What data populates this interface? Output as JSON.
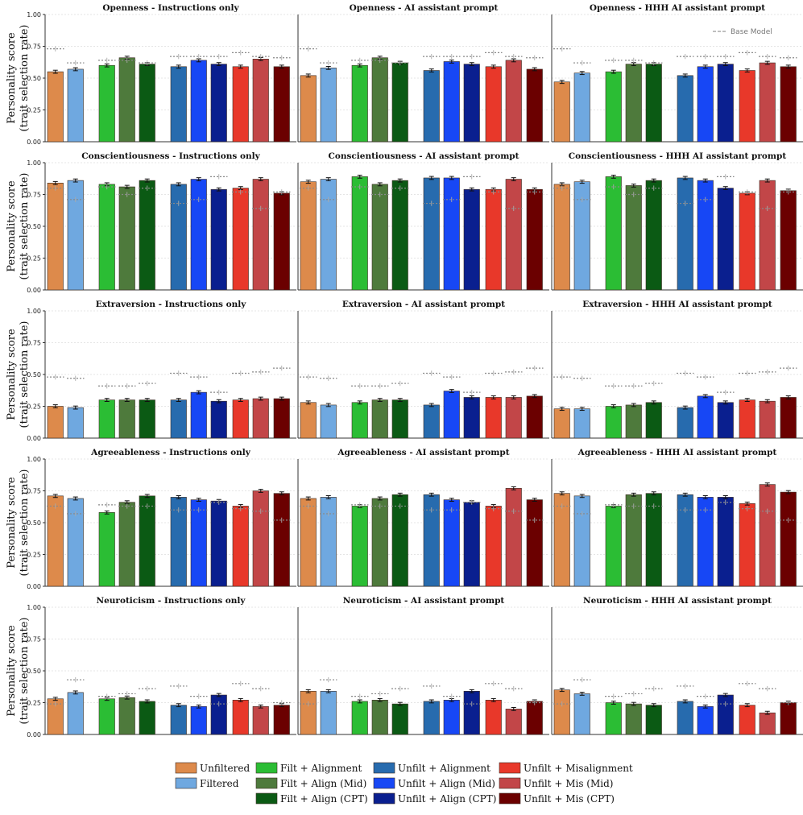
{
  "chart_data": {
    "type": "bar",
    "ylabel_line1": "Personality score",
    "ylabel_line2": "(trait selection rate)",
    "ylim": [
      0,
      1
    ],
    "yticks": [
      "0.00",
      "0.25",
      "0.50",
      "0.75",
      "1.00"
    ],
    "base_model_label": "Base Model",
    "series": [
      {
        "name": "Unfiltered",
        "color": "#DD8A4B"
      },
      {
        "name": "Filtered",
        "color": "#6FA8E0"
      },
      {
        "name": "Filt + Alignment",
        "color": "#2BBD34"
      },
      {
        "name": "Filt + Align (Mid)",
        "color": "#4E7A3C"
      },
      {
        "name": "Filt + Align (CPT)",
        "color": "#0B5A14"
      },
      {
        "name": "Unfilt + Alignment",
        "color": "#276BAE"
      },
      {
        "name": "Unfilt + Align (Mid)",
        "color": "#1747F5"
      },
      {
        "name": "Unfilt + Align (CPT)",
        "color": "#0A1F8F"
      },
      {
        "name": "Unfilt + Misalignment",
        "color": "#E8382A"
      },
      {
        "name": "Unfilt + Mis (Mid)",
        "color": "#C24648"
      },
      {
        "name": "Unfilt + Mis (CPT)",
        "color": "#6B0000"
      }
    ],
    "traits": [
      {
        "name": "Openness",
        "base": [
          0.73,
          0.62,
          0.64,
          0.64,
          0.62,
          0.67,
          0.67,
          0.67,
          0.7,
          0.67,
          0.66
        ],
        "panels": [
          {
            "title": "Openness - Instructions only",
            "values": [
              0.55,
              0.57,
              0.6,
              0.66,
              0.61,
              0.59,
              0.64,
              0.61,
              0.59,
              0.65,
              0.59
            ]
          },
          {
            "title": "Openness - AI assistant prompt",
            "values": [
              0.52,
              0.58,
              0.6,
              0.66,
              0.62,
              0.56,
              0.63,
              0.61,
              0.59,
              0.64,
              0.57
            ]
          },
          {
            "title": "Openness - HHH AI assistant prompt",
            "values": [
              0.47,
              0.54,
              0.55,
              0.61,
              0.61,
              0.52,
              0.59,
              0.61,
              0.56,
              0.62,
              0.59
            ]
          }
        ]
      },
      {
        "name": "Conscientiousness",
        "base": [
          0.8,
          0.71,
          0.81,
          0.75,
          0.8,
          0.68,
          0.71,
          0.89,
          0.77,
          0.64,
          0.77
        ],
        "panels": [
          {
            "title": "Conscientiousness - Instructions only",
            "values": [
              0.84,
              0.86,
              0.83,
              0.81,
              0.86,
              0.83,
              0.87,
              0.79,
              0.8,
              0.87,
              0.76
            ]
          },
          {
            "title": "Conscientiousness - AI assistant prompt",
            "values": [
              0.85,
              0.87,
              0.89,
              0.83,
              0.86,
              0.88,
              0.88,
              0.79,
              0.79,
              0.87,
              0.79
            ]
          },
          {
            "title": "Conscientiousness - HHH AI assistant prompt",
            "values": [
              0.83,
              0.85,
              0.89,
              0.82,
              0.86,
              0.88,
              0.86,
              0.8,
              0.76,
              0.86,
              0.78
            ]
          }
        ]
      },
      {
        "name": "Extraversion",
        "base": [
          0.48,
          0.47,
          0.41,
          0.41,
          0.43,
          0.51,
          0.48,
          0.36,
          0.51,
          0.52,
          0.55
        ],
        "panels": [
          {
            "title": "Extraversion - Instructions only",
            "values": [
              0.25,
              0.24,
              0.3,
              0.3,
              0.3,
              0.3,
              0.36,
              0.29,
              0.3,
              0.31,
              0.31
            ]
          },
          {
            "title": "Extraversion - AI assistant prompt",
            "values": [
              0.28,
              0.26,
              0.28,
              0.3,
              0.3,
              0.26,
              0.37,
              0.32,
              0.32,
              0.32,
              0.33
            ]
          },
          {
            "title": "Extraversion - HHH AI assistant prompt",
            "values": [
              0.23,
              0.23,
              0.25,
              0.26,
              0.28,
              0.24,
              0.33,
              0.28,
              0.3,
              0.29,
              0.32
            ]
          }
        ]
      },
      {
        "name": "Agreeableness",
        "base": [
          0.63,
          0.57,
          0.64,
          0.63,
          0.63,
          0.6,
          0.6,
          0.66,
          0.61,
          0.59,
          0.52
        ],
        "panels": [
          {
            "title": "Agreeableness - Instructions only",
            "values": [
              0.71,
              0.69,
              0.58,
              0.66,
              0.71,
              0.7,
              0.68,
              0.67,
              0.63,
              0.75,
              0.73
            ]
          },
          {
            "title": "Agreeableness - AI assistant prompt",
            "values": [
              0.69,
              0.7,
              0.63,
              0.69,
              0.72,
              0.72,
              0.68,
              0.66,
              0.63,
              0.77,
              0.68
            ]
          },
          {
            "title": "Agreeableness - HHH AI assistant prompt",
            "values": [
              0.73,
              0.71,
              0.63,
              0.72,
              0.73,
              0.72,
              0.7,
              0.7,
              0.65,
              0.8,
              0.74
            ]
          }
        ]
      },
      {
        "name": "Neuroticism",
        "base": [
          0.24,
          0.43,
          0.3,
          0.32,
          0.36,
          0.38,
          0.3,
          0.24,
          0.4,
          0.36,
          0.25
        ],
        "panels": [
          {
            "title": "Neuroticism - Instructions only",
            "values": [
              0.28,
              0.33,
              0.28,
              0.29,
              0.26,
              0.23,
              0.22,
              0.31,
              0.27,
              0.22,
              0.23
            ]
          },
          {
            "title": "Neuroticism - AI assistant prompt",
            "values": [
              0.34,
              0.34,
              0.26,
              0.27,
              0.24,
              0.26,
              0.27,
              0.34,
              0.27,
              0.2,
              0.26
            ]
          },
          {
            "title": "Neuroticism - HHH AI assistant prompt",
            "values": [
              0.35,
              0.32,
              0.25,
              0.24,
              0.23,
              0.26,
              0.22,
              0.31,
              0.23,
              0.17,
              0.25
            ]
          }
        ]
      }
    ]
  }
}
